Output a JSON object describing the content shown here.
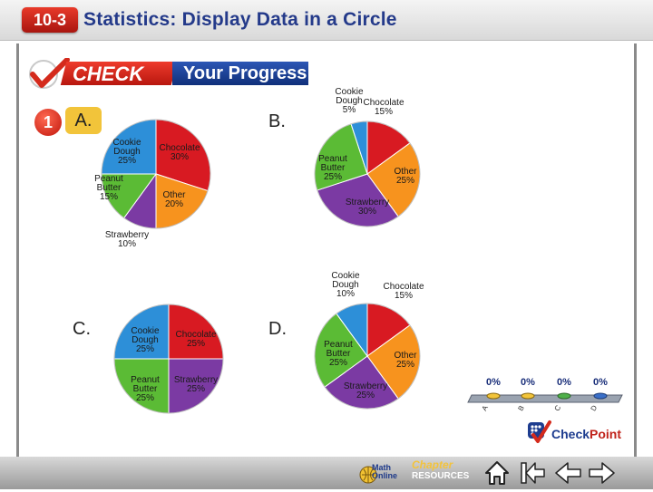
{
  "header": {
    "lesson": "10-3",
    "title": "Statistics: Display Data in a Circle"
  },
  "banner": {
    "check": "CHECK",
    "your_progress": "Your Progress"
  },
  "question": {
    "number": "1"
  },
  "options": {
    "a": "A.",
    "b": "B.",
    "c": "C.",
    "d": "D."
  },
  "chart_data": [
    {
      "type": "pie",
      "option": "A",
      "slices": [
        {
          "name": "Chocolate",
          "label1": "Chocolate",
          "label2": "30%",
          "value": 30,
          "color": "#d81a22"
        },
        {
          "name": "Other",
          "label1": "Other",
          "label2": "20%",
          "value": 20,
          "color": "#f7931e"
        },
        {
          "name": "Strawberry",
          "label1": "Strawberry",
          "label2": "10%",
          "value": 10,
          "color": "#7b3aa3"
        },
        {
          "name": "Peanut Butter",
          "label1": "Peanut",
          "label2": "Butter",
          "label3": "15%",
          "value": 15,
          "color": "#5bbb35"
        },
        {
          "name": "Cookie Dough",
          "label1": "Cookie",
          "label2": "Dough",
          "label3": "25%",
          "value": 25,
          "color": "#2d8fd8"
        }
      ]
    },
    {
      "type": "pie",
      "option": "B",
      "slices": [
        {
          "name": "Chocolate",
          "label1": "Chocolate",
          "label2": "15%",
          "value": 15,
          "color": "#d81a22"
        },
        {
          "name": "Other",
          "label1": "Other",
          "label2": "25%",
          "value": 25,
          "color": "#f7931e"
        },
        {
          "name": "Strawberry",
          "label1": "Strawberry",
          "label2": "30%",
          "value": 30,
          "color": "#7b3aa3"
        },
        {
          "name": "Peanut Butter",
          "label1": "Peanut",
          "label2": "Butter",
          "label3": "25%",
          "value": 25,
          "color": "#5bbb35"
        },
        {
          "name": "Cookie Dough",
          "label1": "Cookie",
          "label2": "Dough",
          "label3": "5%",
          "value": 5,
          "color": "#2d8fd8"
        }
      ]
    },
    {
      "type": "pie",
      "option": "C",
      "slices": [
        {
          "name": "Chocolate",
          "label1": "Chocolate",
          "label2": "25%",
          "value": 25,
          "color": "#d81a22"
        },
        {
          "name": "Strawberry",
          "label1": "Strawberry",
          "label2": "25%",
          "value": 25,
          "color": "#7b3aa3"
        },
        {
          "name": "Peanut Butter",
          "label1": "Peanut",
          "label2": "Butter",
          "label3": "25%",
          "value": 25,
          "color": "#5bbb35"
        },
        {
          "name": "Cookie Dough",
          "label1": "Cookie",
          "label2": "Dough",
          "label3": "25%",
          "value": 25,
          "color": "#2d8fd8"
        }
      ]
    },
    {
      "type": "pie",
      "option": "D",
      "slices": [
        {
          "name": "Chocolate",
          "label1": "Chocolate",
          "label2": "15%",
          "value": 15,
          "color": "#d81a22"
        },
        {
          "name": "Other",
          "label1": "Other",
          "label2": "25%",
          "value": 25,
          "color": "#f7931e"
        },
        {
          "name": "Strawberry",
          "label1": "Strawberry",
          "label2": "25%",
          "value": 25,
          "color": "#7b3aa3"
        },
        {
          "name": "Peanut Butter",
          "label1": "Peanut",
          "label2": "Butter",
          "label3": "25%",
          "value": 25,
          "color": "#5bbb35"
        },
        {
          "name": "Cookie Dough",
          "label1": "Cookie",
          "label2": "Dough",
          "label3": "10%",
          "value": 10,
          "color": "#2d8fd8"
        }
      ]
    }
  ],
  "poll": {
    "percents": [
      "0%",
      "0%",
      "0%",
      "0%"
    ],
    "letters": [
      "A",
      "B",
      "C",
      "D"
    ],
    "pad_colors": [
      "#f2c43a",
      "#f2c43a",
      "#4fb04a",
      "#3a6fc8"
    ]
  },
  "checkpoint": {
    "check": "Check",
    "point": "Point"
  },
  "footer": {
    "math_online_1": "Math",
    "math_online_2": "Online",
    "chapter": "Chapter",
    "resources": "RESOURCES",
    "icons": [
      "home-icon",
      "first-slide-icon",
      "previous-slide-icon",
      "next-slide-icon"
    ]
  }
}
